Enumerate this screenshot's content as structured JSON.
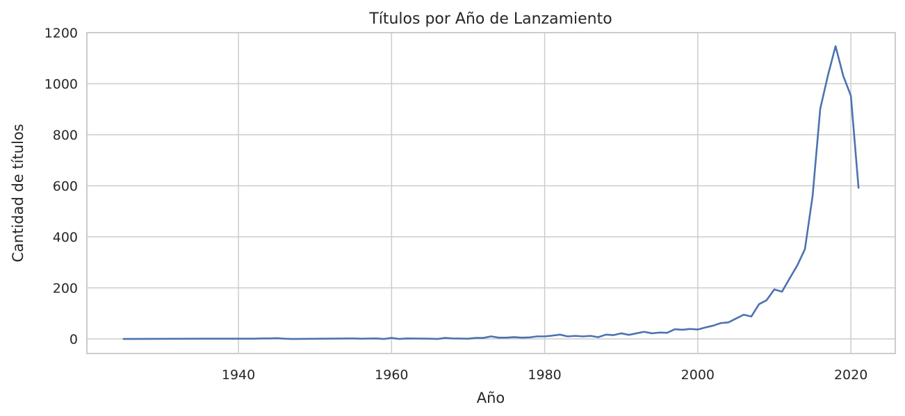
{
  "chart_data": {
    "type": "line",
    "title": "Títulos por Año de Lanzamiento",
    "xlabel": "Año",
    "ylabel": "Cantidad de títulos",
    "xlim": [
      1920.2,
      2025.8
    ],
    "ylim": [
      -57,
      1200
    ],
    "xticks": [
      1940,
      1960,
      1980,
      2000,
      2020
    ],
    "yticks": [
      0,
      200,
      400,
      600,
      800,
      1000,
      1200
    ],
    "grid": true,
    "colors": {
      "line": "#4c72b0",
      "grid": "#cccccc",
      "text": "#262626"
    },
    "series": [
      {
        "x": [
          1925,
          1935,
          1942,
          1943,
          1944,
          1945,
          1946,
          1947,
          1955,
          1956,
          1958,
          1959,
          1960,
          1961,
          1962,
          1965,
          1966,
          1967,
          1968,
          1970,
          1971,
          1972,
          1973,
          1974,
          1975,
          1976,
          1977,
          1978,
          1979,
          1980,
          1981,
          1982,
          1983,
          1984,
          1985,
          1986,
          1987,
          1988,
          1989,
          1990,
          1991,
          1992,
          1993,
          1994,
          1995,
          1996,
          1997,
          1998,
          1999,
          2000,
          2001,
          2002,
          2003,
          2004,
          2005,
          2006,
          2007,
          2008,
          2009,
          2010,
          2011,
          2012,
          2013,
          2014,
          2015,
          2016,
          2017,
          2018,
          2019,
          2020,
          2021
        ],
        "values": [
          0,
          1,
          1,
          2,
          2,
          3,
          1,
          0,
          2,
          1,
          2,
          0,
          4,
          0,
          2,
          1,
          0,
          4,
          2,
          1,
          4,
          4,
          10,
          5,
          5,
          7,
          5,
          6,
          10,
          10,
          13,
          17,
          10,
          12,
          10,
          12,
          7,
          17,
          15,
          22,
          16,
          22,
          28,
          22,
          25,
          24,
          38,
          36,
          39,
          37,
          45,
          52,
          62,
          65,
          80,
          95,
          88,
          136,
          152,
          194,
          185,
          237,
          288,
          352,
          560,
          902,
          1032,
          1147,
          1031,
          953,
          592
        ]
      }
    ]
  }
}
